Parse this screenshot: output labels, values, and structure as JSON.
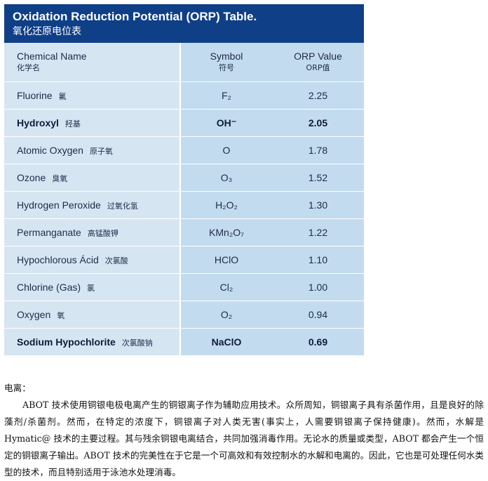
{
  "title": {
    "en": "Oxidation Reduction Potential (ORP) Table.",
    "zh": "氧化还原电位表"
  },
  "header": {
    "name_en": "Chemical Name",
    "name_zh": "化学名",
    "symbol_en": "Symbol",
    "symbol_zh": "符号",
    "orp_en": "ORP Value",
    "orp_zh": "ORP值"
  },
  "rows": [
    {
      "name_en": "Fluorine",
      "name_zh": "氟",
      "symbol": "F₂",
      "orp": "2.25",
      "bold": false
    },
    {
      "name_en": "Hydroxyl",
      "name_zh": "羟基",
      "symbol": "OH⁻",
      "orp": "2.05",
      "bold": true
    },
    {
      "name_en": "Atomic Oxygen",
      "name_zh": "原子氧",
      "symbol": "O",
      "orp": "1.78",
      "bold": false
    },
    {
      "name_en": "Ozone",
      "name_zh": "臭氧",
      "symbol": "O₃",
      "orp": "1.52",
      "bold": false
    },
    {
      "name_en": "Hydrogen Peroxide",
      "name_zh": "过氧化氢",
      "symbol": "H₂O₂",
      "orp": "1.30",
      "bold": false
    },
    {
      "name_en": "Permanganate",
      "name_zh": "高锰酸钾",
      "symbol": "KMn₂O₇",
      "orp": "1.22",
      "bold": false
    },
    {
      "name_en": "Hypochlorous Ácid",
      "name_zh": "次氯酸",
      "symbol": "HClO",
      "orp": "1.10",
      "bold": false
    },
    {
      "name_en": "Chlorine (Gas)",
      "name_zh": "氯",
      "symbol": "Cl₂",
      "orp": "1.00",
      "bold": false
    },
    {
      "name_en": "Oxygen",
      "name_zh": "氧",
      "symbol": "O₂",
      "orp": "0.94",
      "bold": false
    },
    {
      "name_en": "Sodium Hypochlorite",
      "name_zh": "次氯酸钠",
      "symbol": "NaClO",
      "orp": "0.69",
      "bold": true
    }
  ],
  "body": {
    "heading": "电离：",
    "paragraph": "ABOT 技术使用铜银电极电离产生的铜银离子作为辅助应用技术。众所周知，铜银离子具有杀菌作用，且是良好的除藻剂/杀菌剂。然而，在特定的浓度下，铜银离子对人类无害(事实上，人需要铜银离子保持健康)。然而，水解是 Hymatic@ 技术的主要过程。其与残余铜银电离结合，共同加强消毒作用。无论水的质量或类型，ABOT 都会产生一个恒定的铜银离子输出。ABOT 技术的完美性在于它是一个可高效和有效控制水的水解和电离的。因此，它也是可处理任何水类型的技术，而且特别适用于泳池水处理消毒。"
  },
  "colors": {
    "title_bar": "#0f3f87",
    "name_column": "#d6e5f2",
    "value_columns": "#c3dbee"
  }
}
